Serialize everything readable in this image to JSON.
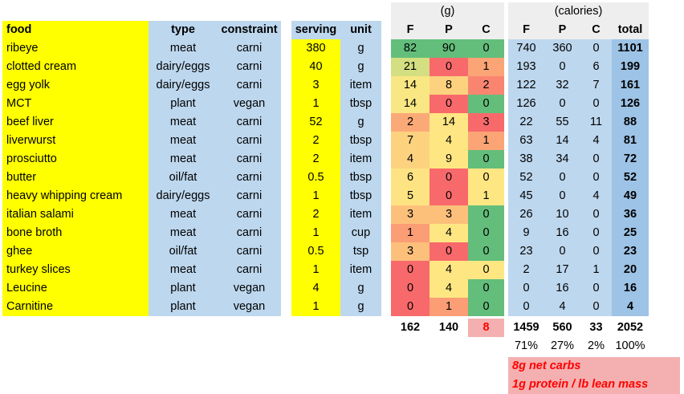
{
  "headers": {
    "food": "food",
    "type": "type",
    "constraint": "constraint",
    "serving": "serving",
    "unit": "unit",
    "grams_group": "(g)",
    "calories_group": "(calories)",
    "g_f": "F",
    "g_p": "P",
    "g_c": "C",
    "k_f": "F",
    "k_p": "P",
    "k_c": "C",
    "k_total": "total"
  },
  "rows": [
    {
      "food": "ribeye",
      "type": "meat",
      "constraint": "carni",
      "serving": "380",
      "unit": "g",
      "gf": "82",
      "gp": "90",
      "gc": "0",
      "kf": "740",
      "kp": "360",
      "kc": "0",
      "total": "1101",
      "gf_color": "#63be7b",
      "gp_color": "#63be7b",
      "gc_color": "#63be7b"
    },
    {
      "food": "clotted cream",
      "type": "dairy/eggs",
      "constraint": "carni",
      "serving": "40",
      "unit": "g",
      "gf": "21",
      "gp": "0",
      "gc": "1",
      "kf": "193",
      "kp": "0",
      "kc": "6",
      "total": "199",
      "gf_color": "#d3df81",
      "gp_color": "#f8696b",
      "gc_color": "#fba476"
    },
    {
      "food": "egg yolk",
      "type": "dairy/eggs",
      "constraint": "carni",
      "serving": "3",
      "unit": "item",
      "gf": "14",
      "gp": "8",
      "gc": "2",
      "kf": "122",
      "kp": "32",
      "kc": "7",
      "total": "161",
      "gf_color": "#f9e783",
      "gp_color": "#fdd27f",
      "gc_color": "#f98570"
    },
    {
      "food": "MCT",
      "type": "plant",
      "constraint": "vegan",
      "serving": "1",
      "unit": "tbsp",
      "gf": "14",
      "gp": "0",
      "gc": "0",
      "kf": "126",
      "kp": "0",
      "kc": "0",
      "total": "126",
      "gf_color": "#f9e783",
      "gp_color": "#f8696b",
      "gc_color": "#63be7b"
    },
    {
      "food": "beef liver",
      "type": "meat",
      "constraint": "carni",
      "serving": "52",
      "unit": "g",
      "gf": "2",
      "gp": "14",
      "gc": "3",
      "kf": "22",
      "kp": "55",
      "kc": "11",
      "total": "88",
      "gf_color": "#fbaa77",
      "gp_color": "#fde683",
      "gc_color": "#f8696b"
    },
    {
      "food": "liverwurst",
      "type": "meat",
      "constraint": "carni",
      "serving": "2",
      "unit": "tbsp",
      "gf": "7",
      "gp": "4",
      "gc": "1",
      "kf": "63",
      "kp": "14",
      "kc": "4",
      "total": "81",
      "gf_color": "#fdd27f",
      "gp_color": "#fee783",
      "gc_color": "#fba476"
    },
    {
      "food": "prosciutto",
      "type": "meat",
      "constraint": "carni",
      "serving": "2",
      "unit": "item",
      "gf": "4",
      "gp": "9",
      "gc": "0",
      "kf": "38",
      "kp": "34",
      "kc": "0",
      "total": "72",
      "gf_color": "#fdd27f",
      "gp_color": "#fee783",
      "gc_color": "#63be7b"
    },
    {
      "food": "butter",
      "type": "oil/fat",
      "constraint": "carni",
      "serving": "0.5",
      "unit": "tbsp",
      "gf": "6",
      "gp": "0",
      "gc": "0",
      "kf": "52",
      "kp": "0",
      "kc": "0",
      "total": "52",
      "gf_color": "#fee382",
      "gp_color": "#f8696b",
      "gc_color": "#fee783"
    },
    {
      "food": "heavy whipping cream",
      "type": "dairy/eggs",
      "constraint": "carni",
      "serving": "1",
      "unit": "tbsp",
      "gf": "5",
      "gp": "0",
      "gc": "1",
      "kf": "45",
      "kp": "0",
      "kc": "4",
      "total": "49",
      "gf_color": "#fee382",
      "gp_color": "#f8696b",
      "gc_color": "#fee783"
    },
    {
      "food": "italian salami",
      "type": "meat",
      "constraint": "carni",
      "serving": "2",
      "unit": "item",
      "gf": "3",
      "gp": "3",
      "gc": "0",
      "kf": "26",
      "kp": "10",
      "kc": "0",
      "total": "36",
      "gf_color": "#fcc07b",
      "gp_color": "#fcc07b",
      "gc_color": "#63be7b"
    },
    {
      "food": "bone broth",
      "type": "meat",
      "constraint": "carni",
      "serving": "1",
      "unit": "cup",
      "gf": "1",
      "gp": "4",
      "gc": "0",
      "kf": "9",
      "kp": "16",
      "kc": "0",
      "total": "25",
      "gf_color": "#fb9d75",
      "gp_color": "#fee783",
      "gc_color": "#63be7b"
    },
    {
      "food": "ghee",
      "type": "oil/fat",
      "constraint": "carni",
      "serving": "0.5",
      "unit": "tsp",
      "gf": "3",
      "gp": "0",
      "gc": "0",
      "kf": "23",
      "kp": "0",
      "kc": "0",
      "total": "23",
      "gf_color": "#fcc07b",
      "gp_color": "#f8696b",
      "gc_color": "#63be7b"
    },
    {
      "food": "turkey slices",
      "type": "meat",
      "constraint": "carni",
      "serving": "1",
      "unit": "item",
      "gf": "0",
      "gp": "4",
      "gc": "0",
      "kf": "2",
      "kp": "17",
      "kc": "1",
      "total": "20",
      "gf_color": "#f8696b",
      "gp_color": "#fee783",
      "gc_color": "#fee783"
    },
    {
      "food": "Leucine",
      "type": "plant",
      "constraint": "vegan",
      "serving": "4",
      "unit": "g",
      "gf": "0",
      "gp": "4",
      "gc": "0",
      "kf": "0",
      "kp": "16",
      "kc": "0",
      "total": "16",
      "gf_color": "#f8696b",
      "gp_color": "#fee783",
      "gc_color": "#63be7b"
    },
    {
      "food": "Carnitine",
      "type": "plant",
      "constraint": "vegan",
      "serving": "1",
      "unit": "g",
      "gf": "0",
      "gp": "1",
      "gc": "0",
      "kf": "0",
      "kp": "4",
      "kc": "0",
      "total": "4",
      "gf_color": "#f8696b",
      "gp_color": "#fb9d75",
      "gc_color": "#63be7b"
    }
  ],
  "totals": {
    "gf": "162",
    "gp": "140",
    "gc": "8",
    "kf": "1459",
    "kp": "560",
    "kc": "33",
    "total": "2052"
  },
  "percents": {
    "kf": "71%",
    "kp": "27%",
    "kc": "2%",
    "total": "100%"
  },
  "notes": [
    "8g net carbs",
    "1g protein / lb lean mass"
  ],
  "colors": {
    "yellow": "#ffff00",
    "blue": "#bdd7ee",
    "total_blue": "#9dc3e6",
    "note_bg": "#f4b0b0",
    "note_text": "#ff0000"
  }
}
